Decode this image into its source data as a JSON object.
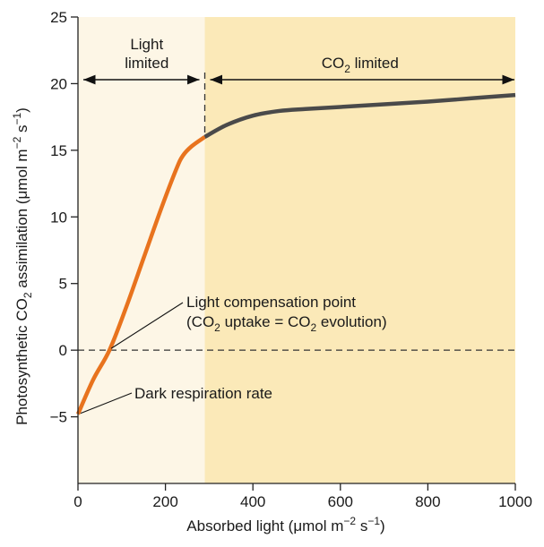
{
  "chart_data": {
    "type": "line",
    "xlabel": "Absorbed light (μmol m⁻² s⁻¹)",
    "xlabel_parts": {
      "main": "Absorbed light (μmol m",
      "exp1": "−2",
      "mid": " s",
      "exp2": "−1",
      "end": ")"
    },
    "ylabel": "Photosynthetic CO₂ assimilation (μmol m⁻² s⁻¹)",
    "ylabel_parts": {
      "main": "Photosynthetic CO",
      "sub": "2",
      "mid": " assimilation (μmol m",
      "exp1": "−2",
      "mid2": " s",
      "exp2": "−1",
      "end": ")"
    },
    "xlim": [
      0,
      1000
    ],
    "ylim": [
      -10,
      25
    ],
    "x_ticks": [
      0,
      200,
      400,
      600,
      800,
      1000
    ],
    "y_ticks": [
      -5,
      0,
      5,
      10,
      15,
      20,
      25
    ],
    "y_tick_labels": [
      "−5",
      "0",
      "5",
      "10",
      "15",
      "20",
      "25"
    ],
    "grid": false,
    "regions": [
      {
        "label_line1": "Light",
        "label_line2": "limited",
        "x_range": [
          0,
          290
        ],
        "color": "#fdf6e6"
      },
      {
        "label_main": "CO",
        "label_sub": "2",
        "label_end": " limited",
        "x_range": [
          290,
          1000
        ],
        "color": "#fbe9b8"
      }
    ],
    "region_boundary_x": 290,
    "arrow_level_y": 20.3,
    "series": [
      {
        "color": "#e8731e",
        "points": [
          [
            0,
            -4.8
          ],
          [
            35,
            -2.2
          ],
          [
            72,
            0
          ],
          [
            110,
            3.2
          ],
          [
            150,
            6.9
          ],
          [
            190,
            10.6
          ],
          [
            225,
            13.6
          ],
          [
            240,
            14.6
          ],
          [
            260,
            15.3
          ],
          [
            290,
            16.0
          ]
        ]
      },
      {
        "color": "#4a4a4a",
        "points": [
          [
            290,
            16.0
          ],
          [
            340,
            16.9
          ],
          [
            400,
            17.6
          ],
          [
            460,
            17.95
          ],
          [
            520,
            18.1
          ],
          [
            600,
            18.25
          ],
          [
            700,
            18.45
          ],
          [
            800,
            18.65
          ],
          [
            900,
            18.9
          ],
          [
            1000,
            19.15
          ]
        ]
      }
    ],
    "reference_line_y": 0,
    "annotations": {
      "compensation": {
        "line1": "Light compensation point",
        "line2_a": "(CO",
        "line2_sub1": "2",
        "line2_b": " uptake = CO",
        "line2_sub2": "2",
        "line2_c": " evolution)",
        "target": [
          72,
          0
        ]
      },
      "dark": {
        "text": "Dark respiration rate",
        "target": [
          0,
          -4.8
        ]
      }
    }
  }
}
